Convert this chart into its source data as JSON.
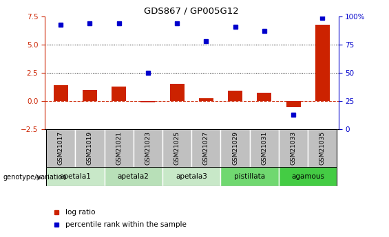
{
  "title": "GDS867 / GP005G12",
  "samples": [
    "GSM21017",
    "GSM21019",
    "GSM21021",
    "GSM21023",
    "GSM21025",
    "GSM21027",
    "GSM21029",
    "GSM21031",
    "GSM21033",
    "GSM21035"
  ],
  "log_ratio": [
    1.4,
    1.0,
    1.3,
    -0.1,
    1.5,
    0.25,
    0.9,
    0.75,
    -0.55,
    6.8
  ],
  "percentile_rank": [
    93,
    94,
    94,
    50,
    94,
    78,
    91,
    87,
    13,
    99
  ],
  "group_defs": [
    {
      "label": "apetala1",
      "indices": [
        0,
        1
      ],
      "color": "#c8e8c8"
    },
    {
      "label": "apetala2",
      "indices": [
        2,
        3
      ],
      "color": "#b8e0b8"
    },
    {
      "label": "apetala3",
      "indices": [
        4,
        5
      ],
      "color": "#c8e8c8"
    },
    {
      "label": "pistillata",
      "indices": [
        6,
        7
      ],
      "color": "#70d870"
    },
    {
      "label": "agamous",
      "indices": [
        8,
        9
      ],
      "color": "#44cc44"
    }
  ],
  "ylim_left": [
    -2.5,
    7.5
  ],
  "ylim_right": [
    0,
    100
  ],
  "yticks_left": [
    -2.5,
    0,
    2.5,
    5.0,
    7.5
  ],
  "yticks_right": [
    0,
    25,
    50,
    75,
    100
  ],
  "bar_color": "#cc2200",
  "dot_color": "#0000cc",
  "dashed_color": "#cc2200",
  "bar_width": 0.5,
  "sample_box_color": "#c0c0c0",
  "legend_items": [
    {
      "label": "log ratio",
      "color": "#cc2200"
    },
    {
      "label": "percentile rank within the sample",
      "color": "#0000cc"
    }
  ]
}
